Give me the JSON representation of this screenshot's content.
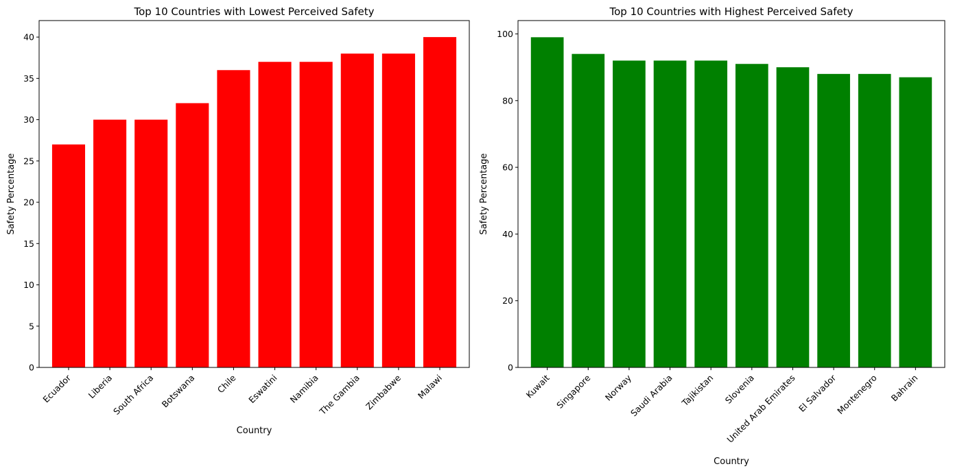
{
  "chart_data": [
    {
      "type": "bar",
      "title": "Top 10 Countries with Lowest Perceived Safety",
      "xlabel": "Country",
      "ylabel": "Safety Percentage",
      "categories": [
        "Ecuador",
        "Liberia",
        "South Africa",
        "Botswana",
        "Chile",
        "Eswatini",
        "Namibia",
        "The Gambia",
        "Zimbabwe",
        "Malawi"
      ],
      "values": [
        27,
        30,
        30,
        32,
        36,
        37,
        37,
        38,
        38,
        40
      ],
      "ylim": [
        0,
        42
      ],
      "yticks": [
        0,
        5,
        10,
        15,
        20,
        25,
        30,
        35,
        40
      ],
      "bar_color": "#ff0000",
      "grid": false
    },
    {
      "type": "bar",
      "title": "Top 10 Countries with Highest Perceived Safety",
      "xlabel": "Country",
      "ylabel": "Safety Percentage",
      "categories": [
        "Kuwait",
        "Singapore",
        "Norway",
        "Saudi Arabia",
        "Tajikistan",
        "Slovenia",
        "United Arab Emirates",
        "El Salvador",
        "Montenegro",
        "Bahrain"
      ],
      "values": [
        99,
        94,
        92,
        92,
        92,
        91,
        90,
        88,
        88,
        87
      ],
      "ylim": [
        0,
        104
      ],
      "yticks": [
        0,
        20,
        40,
        60,
        80,
        100
      ],
      "bar_color": "#008000",
      "grid": false
    }
  ]
}
